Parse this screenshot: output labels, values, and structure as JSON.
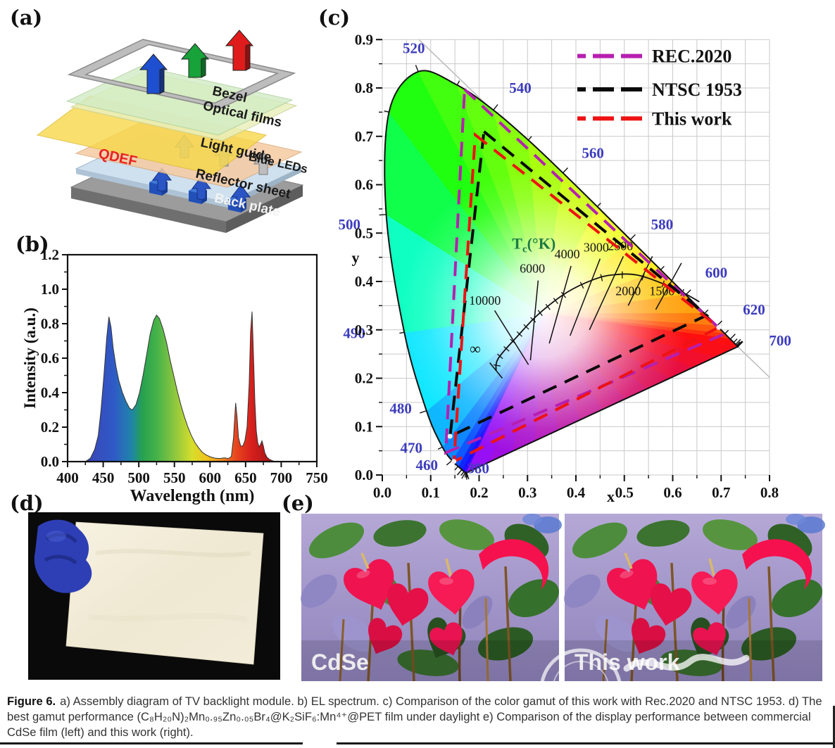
{
  "panels": {
    "a": {
      "label": "(a)",
      "layers": {
        "bezel": "Bezel",
        "optical_films": "Optical films",
        "qdef": "QDEF",
        "light_guide": "Light guide",
        "blue_leds": "Blue LEDs",
        "reflector": "Reflector sheet",
        "back_plate": "Back plate"
      },
      "qdef_color": "#e8231f"
    },
    "b": {
      "label": "(b)"
    },
    "c": {
      "label": "(c)"
    },
    "d": {
      "label": "(d)"
    },
    "e": {
      "label": "(e)",
      "left_image_label": "CdSe",
      "right_image_label": "This work"
    }
  },
  "caption": {
    "prefix": "Figure 6.",
    "body": "a) Assembly diagram of TV backlight module. b) EL spectrum. c) Comparison of the color gamut of this work with Rec.2020 and NTSC 1953. d) The best gamut performance (C₈H₂₀N)₂Mn₀.₉₅Zn₀.₀₅Br₄@K₂SiF₆:Mn⁴⁺@PET film under daylight e) Comparison of the display performance between commercial CdSe film (left) and this work (right)."
  },
  "chart_data": [
    {
      "id": "el_spectrum",
      "type": "area",
      "title": "",
      "xlabel": "Wavelength (nm)",
      "ylabel": "Intensity (a.u.)",
      "xlim": [
        400,
        750
      ],
      "ylim": [
        0,
        1.2
      ],
      "xticks": [
        400,
        450,
        500,
        550,
        600,
        650,
        700,
        750
      ],
      "yticks": [
        "0.0",
        "0.2",
        "0.4",
        "0.6",
        "0.8",
        "1.0",
        "1.2"
      ],
      "points": [
        [
          425,
          0
        ],
        [
          432,
          0.02
        ],
        [
          438,
          0.07
        ],
        [
          443,
          0.15
        ],
        [
          447,
          0.3
        ],
        [
          451,
          0.5
        ],
        [
          455,
          0.72
        ],
        [
          458,
          0.84
        ],
        [
          461,
          0.78
        ],
        [
          464,
          0.66
        ],
        [
          468,
          0.55
        ],
        [
          472,
          0.47
        ],
        [
          477,
          0.4
        ],
        [
          482,
          0.35
        ],
        [
          487,
          0.31
        ],
        [
          491,
          0.3
        ],
        [
          496,
          0.33
        ],
        [
          501,
          0.4
        ],
        [
          506,
          0.5
        ],
        [
          511,
          0.62
        ],
        [
          516,
          0.74
        ],
        [
          521,
          0.82
        ],
        [
          525,
          0.85
        ],
        [
          529,
          0.83
        ],
        [
          534,
          0.77
        ],
        [
          539,
          0.69
        ],
        [
          544,
          0.59
        ],
        [
          549,
          0.5
        ],
        [
          554,
          0.41
        ],
        [
          559,
          0.33
        ],
        [
          564,
          0.26
        ],
        [
          569,
          0.2
        ],
        [
          574,
          0.15
        ],
        [
          579,
          0.11
        ],
        [
          584,
          0.08
        ],
        [
          589,
          0.055
        ],
        [
          594,
          0.04
        ],
        [
          600,
          0.028
        ],
        [
          607,
          0.02
        ],
        [
          614,
          0.018
        ],
        [
          620,
          0.022
        ],
        [
          626,
          0.018
        ],
        [
          630,
          0.03
        ],
        [
          633,
          0.14
        ],
        [
          636,
          0.34
        ],
        [
          638,
          0.26
        ],
        [
          640,
          0.14
        ],
        [
          643,
          0.09
        ],
        [
          646,
          0.09
        ],
        [
          649,
          0.12
        ],
        [
          652,
          0.2
        ],
        [
          655,
          0.45
        ],
        [
          657,
          0.75
        ],
        [
          659,
          0.87
        ],
        [
          661,
          0.62
        ],
        [
          663,
          0.35
        ],
        [
          665,
          0.18
        ],
        [
          667,
          0.11
        ],
        [
          669,
          0.085
        ],
        [
          671,
          0.1
        ],
        [
          673,
          0.12
        ],
        [
          675,
          0.09
        ],
        [
          677,
          0.05
        ],
        [
          680,
          0.025
        ],
        [
          684,
          0.012
        ],
        [
          688,
          0.005
        ],
        [
          692,
          0
        ]
      ],
      "gradient": [
        [
          425,
          "#3b44b8"
        ],
        [
          465,
          "#2f5ac6"
        ],
        [
          490,
          "#1f85a8"
        ],
        [
          505,
          "#27a14e"
        ],
        [
          525,
          "#46b24a"
        ],
        [
          550,
          "#8cc63f"
        ],
        [
          575,
          "#d6de2b"
        ],
        [
          595,
          "#f0c41f"
        ],
        [
          615,
          "#f2921e"
        ],
        [
          635,
          "#e8491f"
        ],
        [
          658,
          "#d6201d"
        ],
        [
          692,
          "#9e1313"
        ]
      ]
    },
    {
      "id": "cie_1931_gamut",
      "type": "scatter",
      "variant": "chromaticity-diagram",
      "xlabel": "x",
      "ylabel": "y",
      "xlim": [
        0,
        0.8
      ],
      "ylim": [
        0,
        0.9
      ],
      "xticks": [
        "0.0",
        "0.1",
        "0.2",
        "0.3",
        "0.4",
        "0.5",
        "0.6",
        "0.7",
        "0.8"
      ],
      "yticks": [
        "0.0",
        "0.1",
        "0.2",
        "0.3",
        "0.4",
        "0.5",
        "0.6",
        "0.7",
        "0.8",
        "0.9"
      ],
      "grid_step": 0.05,
      "legend": {
        "position": "top-right",
        "items": [
          {
            "label": "REC.2020",
            "color": "#b61fb0"
          },
          {
            "label": "NTSC 1953",
            "color": "#0a0a0a"
          },
          {
            "label": "This work",
            "color": "#ee1212"
          }
        ]
      },
      "gamuts": [
        {
          "name": "REC.2020",
          "color": "#b61fb0",
          "vertices": [
            [
              0.17,
              0.797
            ],
            [
              0.708,
              0.292
            ],
            [
              0.131,
              0.046
            ]
          ]
        },
        {
          "name": "NTSC 1953",
          "color": "#0a0a0a",
          "vertices": [
            [
              0.21,
              0.71
            ],
            [
              0.67,
              0.33
            ],
            [
              0.14,
              0.08
            ]
          ]
        },
        {
          "name": "This work",
          "color": "#ee1212",
          "vertices": [
            [
              0.192,
              0.703
            ],
            [
              0.695,
              0.305
            ],
            [
              0.148,
              0.028
            ]
          ]
        }
      ],
      "white_point": [
        0.3333,
        0.3333
      ],
      "white_markers": [
        [
          0.148,
          0.028
        ],
        [
          0.14,
          0.08
        ],
        [
          0.695,
          0.305
        ]
      ],
      "wavelength_label_color": "#3c3cbe",
      "wavelength_labels": [
        {
          "t": "520",
          "x": 0.065,
          "y": 0.872
        },
        {
          "t": "540",
          "x": 0.285,
          "y": 0.79
        },
        {
          "t": "560",
          "x": 0.435,
          "y": 0.655
        },
        {
          "t": "580",
          "x": 0.578,
          "y": 0.508
        },
        {
          "t": "600",
          "x": 0.69,
          "y": 0.408
        },
        {
          "t": "620",
          "x": 0.768,
          "y": 0.332
        },
        {
          "t": "700",
          "x": 0.822,
          "y": 0.268
        },
        {
          "t": "500",
          "x": -0.068,
          "y": 0.508
        },
        {
          "t": "490",
          "x": -0.058,
          "y": 0.283
        },
        {
          "t": "480",
          "x": 0.038,
          "y": 0.127
        },
        {
          "t": "470",
          "x": 0.06,
          "y": 0.046
        },
        {
          "t": "460",
          "x": 0.092,
          "y": 0.01
        },
        {
          "t": "380",
          "x": 0.198,
          "y": 0.004
        }
      ],
      "planckian": {
        "title": "Tc(°K)",
        "title_color": "#1c7a45",
        "title_pos": [
          0.268,
          0.468
        ],
        "curve": [
          [
            0.235,
            0.215
          ],
          [
            0.2398,
            0.2413
          ],
          [
            0.2806,
            0.2883
          ],
          [
            0.3221,
            0.3318
          ],
          [
            0.3805,
            0.3768
          ],
          [
            0.4369,
            0.4041
          ],
          [
            0.477,
            0.4137
          ],
          [
            0.5267,
            0.4133
          ],
          [
            0.5857,
            0.3931
          ],
          [
            0.625,
            0.375
          ],
          [
            0.655,
            0.358
          ]
        ],
        "temps": [
          {
            "t": "∞",
            "label": [
              0.192,
              0.25
            ],
            "line": [
              [
                0.222,
                0.232
              ],
              [
                0.248,
                0.2
              ]
            ]
          },
          {
            "t": "10000",
            "label": [
              0.212,
              0.352
            ],
            "line": [
              [
                0.232,
                0.34
              ],
              [
                0.302,
                0.228
              ]
            ]
          },
          {
            "t": "6000",
            "label": [
              0.31,
              0.418
            ],
            "line": [
              [
                0.322,
                0.402
              ],
              [
                0.306,
                0.237
              ]
            ]
          },
          {
            "t": "4000",
            "label": [
              0.382,
              0.448
            ],
            "line": [
              [
                0.39,
                0.432
              ],
              [
                0.345,
                0.272
              ]
            ]
          },
          {
            "t": "3000",
            "label": [
              0.442,
              0.462
            ],
            "line": [
              [
                0.45,
                0.447
              ],
              [
                0.388,
                0.288
              ]
            ]
          },
          {
            "t": "2500",
            "label": [
              0.492,
              0.465
            ],
            "line": [
              [
                0.498,
                0.452
              ],
              [
                0.428,
                0.3
              ]
            ]
          },
          {
            "t": "2000",
            "label": [
              0.508,
              0.372
            ],
            "line": [
              [
                0.558,
                0.452
              ],
              [
                0.508,
                0.35
              ]
            ]
          },
          {
            "t": "1500",
            "label": [
              0.578,
              0.372
            ],
            "line": [
              [
                0.618,
                0.438
              ],
              [
                0.565,
                0.342
              ]
            ]
          }
        ]
      },
      "spectral_locus": [
        [
          380,
          0.1741,
          0.005
        ],
        [
          390,
          0.1738,
          0.0049
        ],
        [
          400,
          0.1733,
          0.0048
        ],
        [
          410,
          0.1726,
          0.0048
        ],
        [
          420,
          0.1714,
          0.0051
        ],
        [
          430,
          0.1689,
          0.0069
        ],
        [
          440,
          0.1644,
          0.0109
        ],
        [
          450,
          0.1566,
          0.0177
        ],
        [
          460,
          0.144,
          0.0297
        ],
        [
          470,
          0.1241,
          0.0578
        ],
        [
          480,
          0.0913,
          0.1327
        ],
        [
          490,
          0.0454,
          0.295
        ],
        [
          500,
          0.0082,
          0.5384
        ],
        [
          510,
          0.0139,
          0.7502
        ],
        [
          520,
          0.0743,
          0.8338
        ],
        [
          530,
          0.1547,
          0.8059
        ],
        [
          540,
          0.2296,
          0.7543
        ],
        [
          550,
          0.3016,
          0.6923
        ],
        [
          560,
          0.3731,
          0.6245
        ],
        [
          570,
          0.4441,
          0.5547
        ],
        [
          580,
          0.5125,
          0.4866
        ],
        [
          590,
          0.5752,
          0.4242
        ],
        [
          600,
          0.627,
          0.3725
        ],
        [
          610,
          0.6658,
          0.334
        ],
        [
          620,
          0.6915,
          0.3083
        ],
        [
          630,
          0.7079,
          0.292
        ],
        [
          640,
          0.719,
          0.2809
        ],
        [
          650,
          0.726,
          0.274
        ],
        [
          660,
          0.73,
          0.27
        ],
        [
          670,
          0.732,
          0.268
        ],
        [
          680,
          0.7334,
          0.2666
        ],
        [
          690,
          0.7344,
          0.2656
        ],
        [
          700,
          0.7347,
          0.2653
        ]
      ],
      "diagonal_line": [
        [
          0.0756,
          0.9
        ],
        [
          0.8,
          0.202
        ]
      ]
    }
  ]
}
